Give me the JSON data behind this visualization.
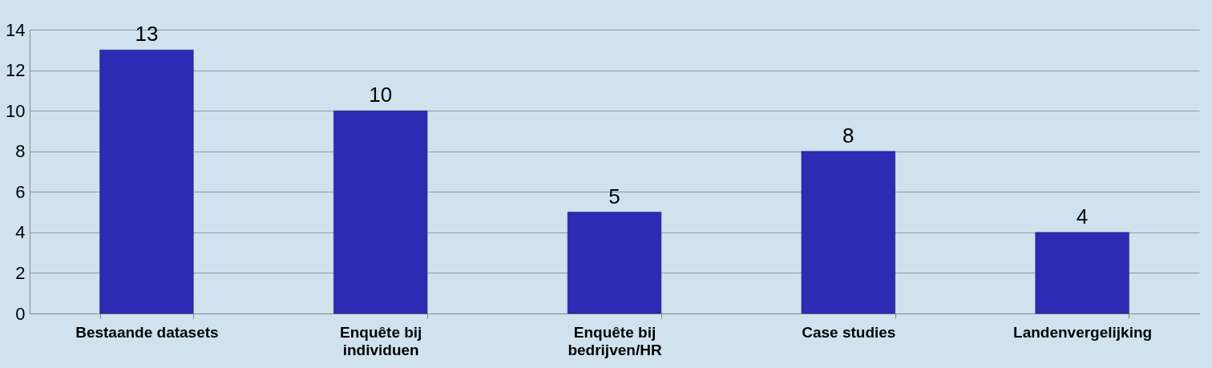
{
  "chart_data": {
    "type": "bar",
    "categories": [
      "Bestaande datasets",
      "Enquête bij individuen",
      "Enquête bij bedrijven/HR",
      "Case studies",
      "Landenvergelijking"
    ],
    "values": [
      13,
      10,
      5,
      8,
      4
    ],
    "color": "#2b2bb3",
    "ylim": [
      0,
      14
    ],
    "yticks": [
      0,
      2,
      4,
      6,
      8,
      10,
      12,
      14
    ],
    "grid": "y",
    "data_labels": true
  }
}
